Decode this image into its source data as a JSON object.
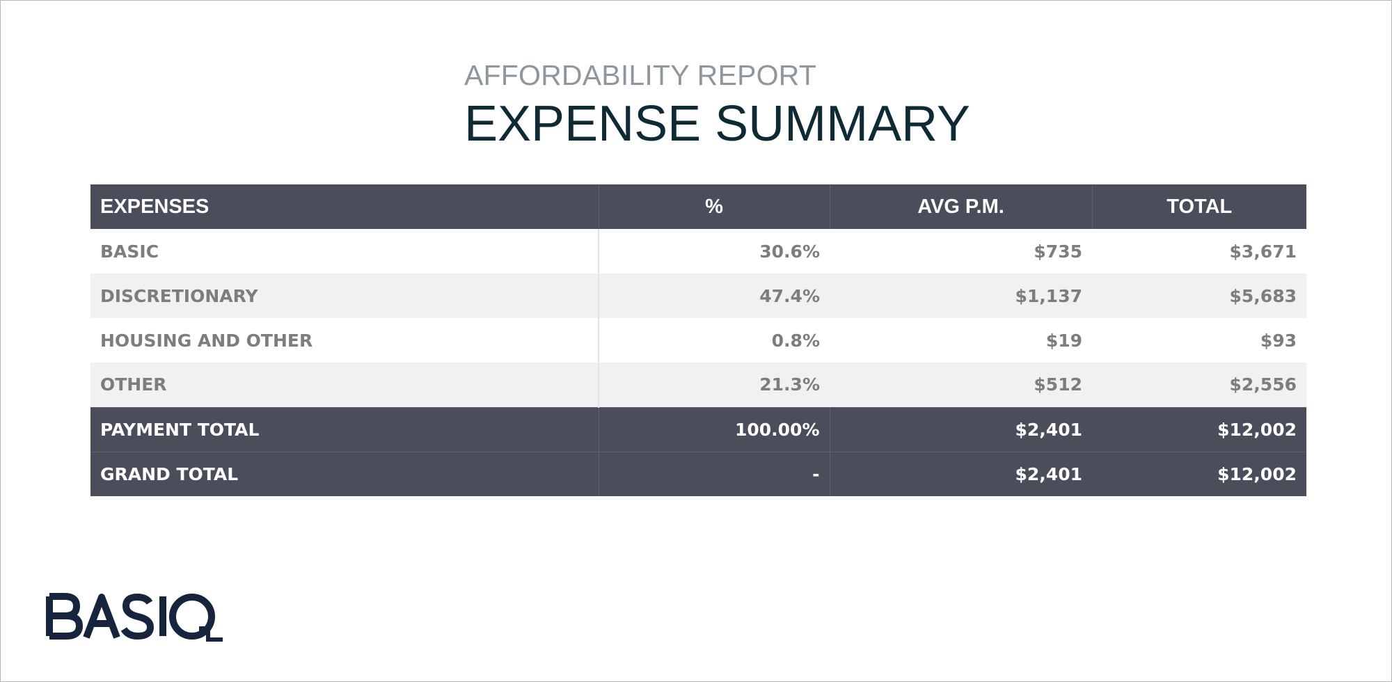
{
  "report": {
    "subtitle": "AFFORDABILITY REPORT",
    "title": "EXPENSE SUMMARY"
  },
  "table": {
    "headers": {
      "expenses": "EXPENSES",
      "percent": "%",
      "avg_pm": "AVG P.M.",
      "total": "TOTAL"
    },
    "rows": [
      {
        "label": "BASIC",
        "percent": "30.6%",
        "avg_pm": "$735",
        "total": "$3,671"
      },
      {
        "label": "DISCRETIONARY",
        "percent": "47.4%",
        "avg_pm": "$1,137",
        "total": "$5,683"
      },
      {
        "label": "HOUSING AND OTHER",
        "percent": "0.8%",
        "avg_pm": "$19",
        "total": "$93"
      },
      {
        "label": "OTHER",
        "percent": "21.3%",
        "avg_pm": "$512",
        "total": "$2,556"
      }
    ],
    "totals": [
      {
        "label": "PAYMENT TOTAL",
        "percent": "100.00%",
        "avg_pm": "$2,401",
        "total": "$12,002"
      },
      {
        "label": "GRAND TOTAL",
        "percent": "-",
        "avg_pm": "$2,401",
        "total": "$12,002"
      }
    ]
  },
  "logo": {
    "text": "BASIQ",
    "color": "#16243d"
  },
  "colors": {
    "header_bg": "#4a4e5a",
    "title": "#0e2a35",
    "subtitle": "#8e979e",
    "row_alt": "#f1f1f4",
    "cell_text": "#7d7d7f"
  }
}
